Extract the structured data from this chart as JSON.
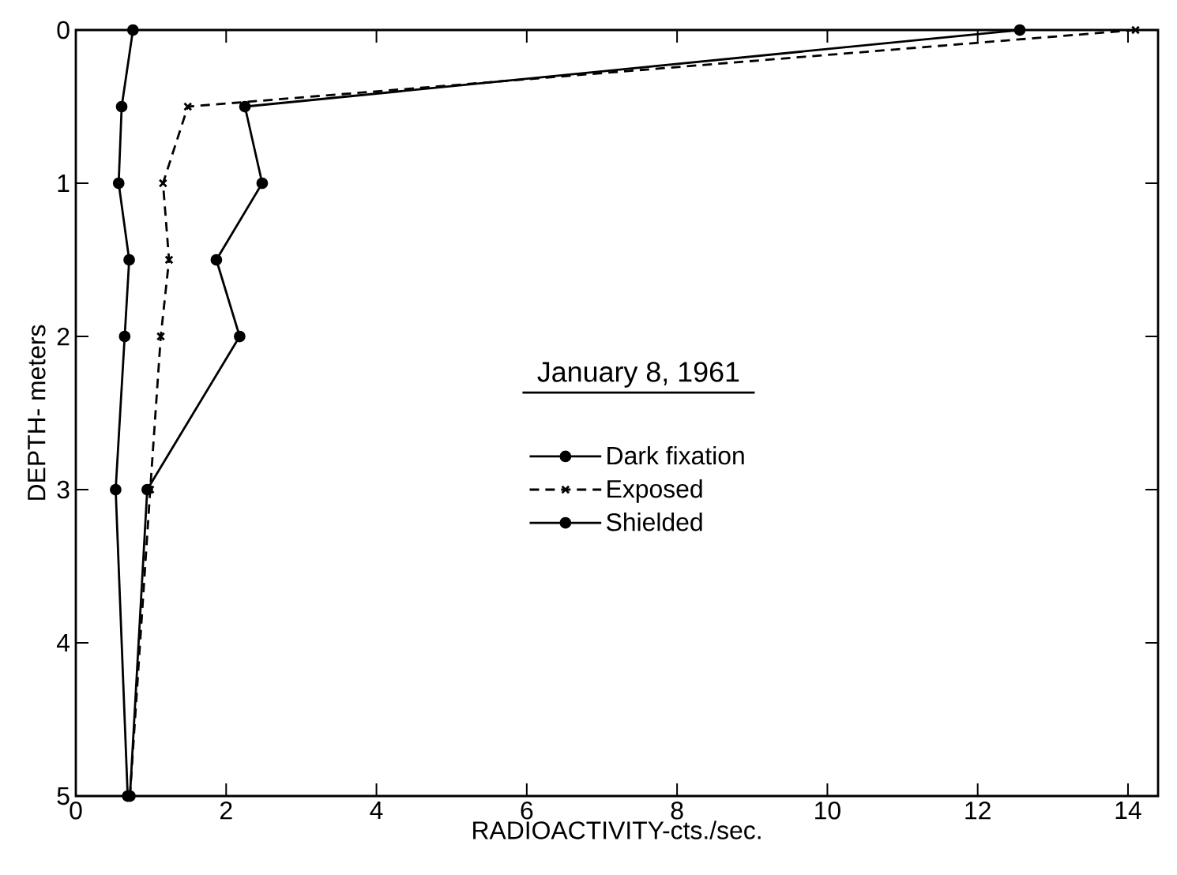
{
  "chart_data": {
    "type": "line",
    "xlabel": "RADIOACTIVITY-cts./sec.",
    "ylabel": "DEPTH- meters",
    "annotations": [
      "January 8, 1961"
    ],
    "xlim": [
      0,
      14.4
    ],
    "ylim": [
      5,
      0
    ],
    "xticks": [
      0,
      2,
      4,
      6,
      8,
      10,
      12,
      14
    ],
    "yticks": [
      0,
      1,
      2,
      3,
      4,
      5
    ],
    "legend": "center",
    "grid": false,
    "series": [
      {
        "name": "Dark fixation",
        "color": "#000000",
        "marker": "circle",
        "line_style": "solid",
        "x": [
          0.76,
          0.61,
          0.57,
          0.71,
          0.65,
          0.53,
          0.69
        ],
        "values": [
          0,
          0.5,
          1,
          1.5,
          2,
          3,
          5
        ]
      },
      {
        "name": "Exposed",
        "color": "#000000",
        "marker": "cross",
        "line_style": "dashed",
        "x": [
          14.1,
          1.49,
          1.16,
          1.24,
          1.13,
          0.99,
          0.72
        ],
        "values": [
          0,
          0.5,
          1,
          1.5,
          2,
          3,
          5
        ]
      },
      {
        "name": "Shielded",
        "color": "#000000",
        "marker": "circle",
        "line_style": "solid",
        "x": [
          12.56,
          2.25,
          2.48,
          1.87,
          2.18,
          0.95,
          0.72
        ],
        "values": [
          0,
          0.5,
          1,
          1.5,
          2,
          3,
          5
        ]
      }
    ]
  }
}
